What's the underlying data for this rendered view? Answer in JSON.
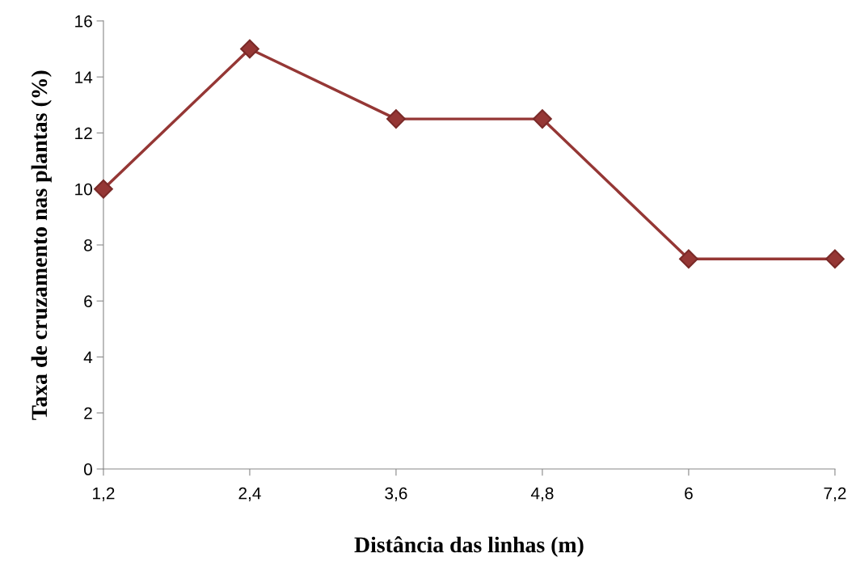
{
  "chart_data": {
    "type": "line",
    "xlabel": "Distância das linhas (m)",
    "ylabel": "Taxa de cruzamento nas plantas (%)",
    "categories": [
      "1,2",
      "2,4",
      "3,6",
      "4,8",
      "6",
      "7,2"
    ],
    "series": [
      {
        "color": "#953735",
        "values": [
          10,
          15,
          12.5,
          12.5,
          7.5,
          7.5
        ]
      }
    ],
    "ylim": [
      0,
      16
    ],
    "yticks": [
      0,
      2,
      4,
      6,
      8,
      10,
      12,
      14,
      16
    ],
    "grid": false,
    "legend": false,
    "marker": "diamond",
    "line_style": "solid"
  }
}
